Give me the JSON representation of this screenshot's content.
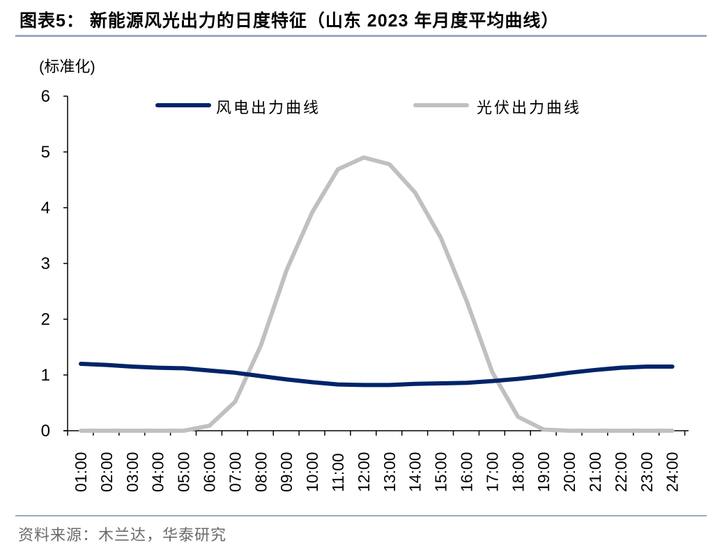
{
  "title": "图表5： 新能源风光出力的日度特征（山东 2023 年月度平均曲线）",
  "unit_label": "(标准化)",
  "source": "资料来源：木兰达，华泰研究",
  "legend": {
    "wind": "风电出力曲线",
    "solar": "光伏出力曲线"
  },
  "colors": {
    "wind": "#002469",
    "solar": "#c0c0c0",
    "rule": "#97a9c4"
  },
  "chart_data": {
    "type": "line",
    "title": "新能源风光出力的日度特征（山东 2023 年月度平均曲线）",
    "xlabel": "",
    "ylabel": "(标准化)",
    "ylim": [
      0,
      6
    ],
    "yticks": [
      0,
      1,
      2,
      3,
      4,
      5,
      6
    ],
    "grid": false,
    "legend_position": "top",
    "categories": [
      "01:00",
      "02:00",
      "03:00",
      "04:00",
      "05:00",
      "06:00",
      "07:00",
      "08:00",
      "09:00",
      "10:00",
      "11:00",
      "12:00",
      "13:00",
      "14:00",
      "15:00",
      "16:00",
      "17:00",
      "18:00",
      "19:00",
      "20:00",
      "21:00",
      "22:00",
      "23:00",
      "24:00"
    ],
    "series": [
      {
        "name": "风电出力曲线",
        "color": "#002469",
        "values": [
          1.2,
          1.18,
          1.15,
          1.13,
          1.12,
          1.08,
          1.04,
          0.98,
          0.92,
          0.87,
          0.83,
          0.82,
          0.82,
          0.84,
          0.85,
          0.86,
          0.89,
          0.93,
          0.98,
          1.04,
          1.09,
          1.13,
          1.15,
          1.15
        ]
      },
      {
        "name": "光伏出力曲线",
        "color": "#c0c0c0",
        "values": [
          0,
          0,
          0,
          0,
          0,
          0.09,
          0.52,
          1.53,
          2.88,
          3.92,
          4.69,
          4.9,
          4.78,
          4.27,
          3.46,
          2.33,
          1.05,
          0.25,
          0.02,
          0,
          0,
          0,
          0,
          0
        ]
      }
    ]
  }
}
